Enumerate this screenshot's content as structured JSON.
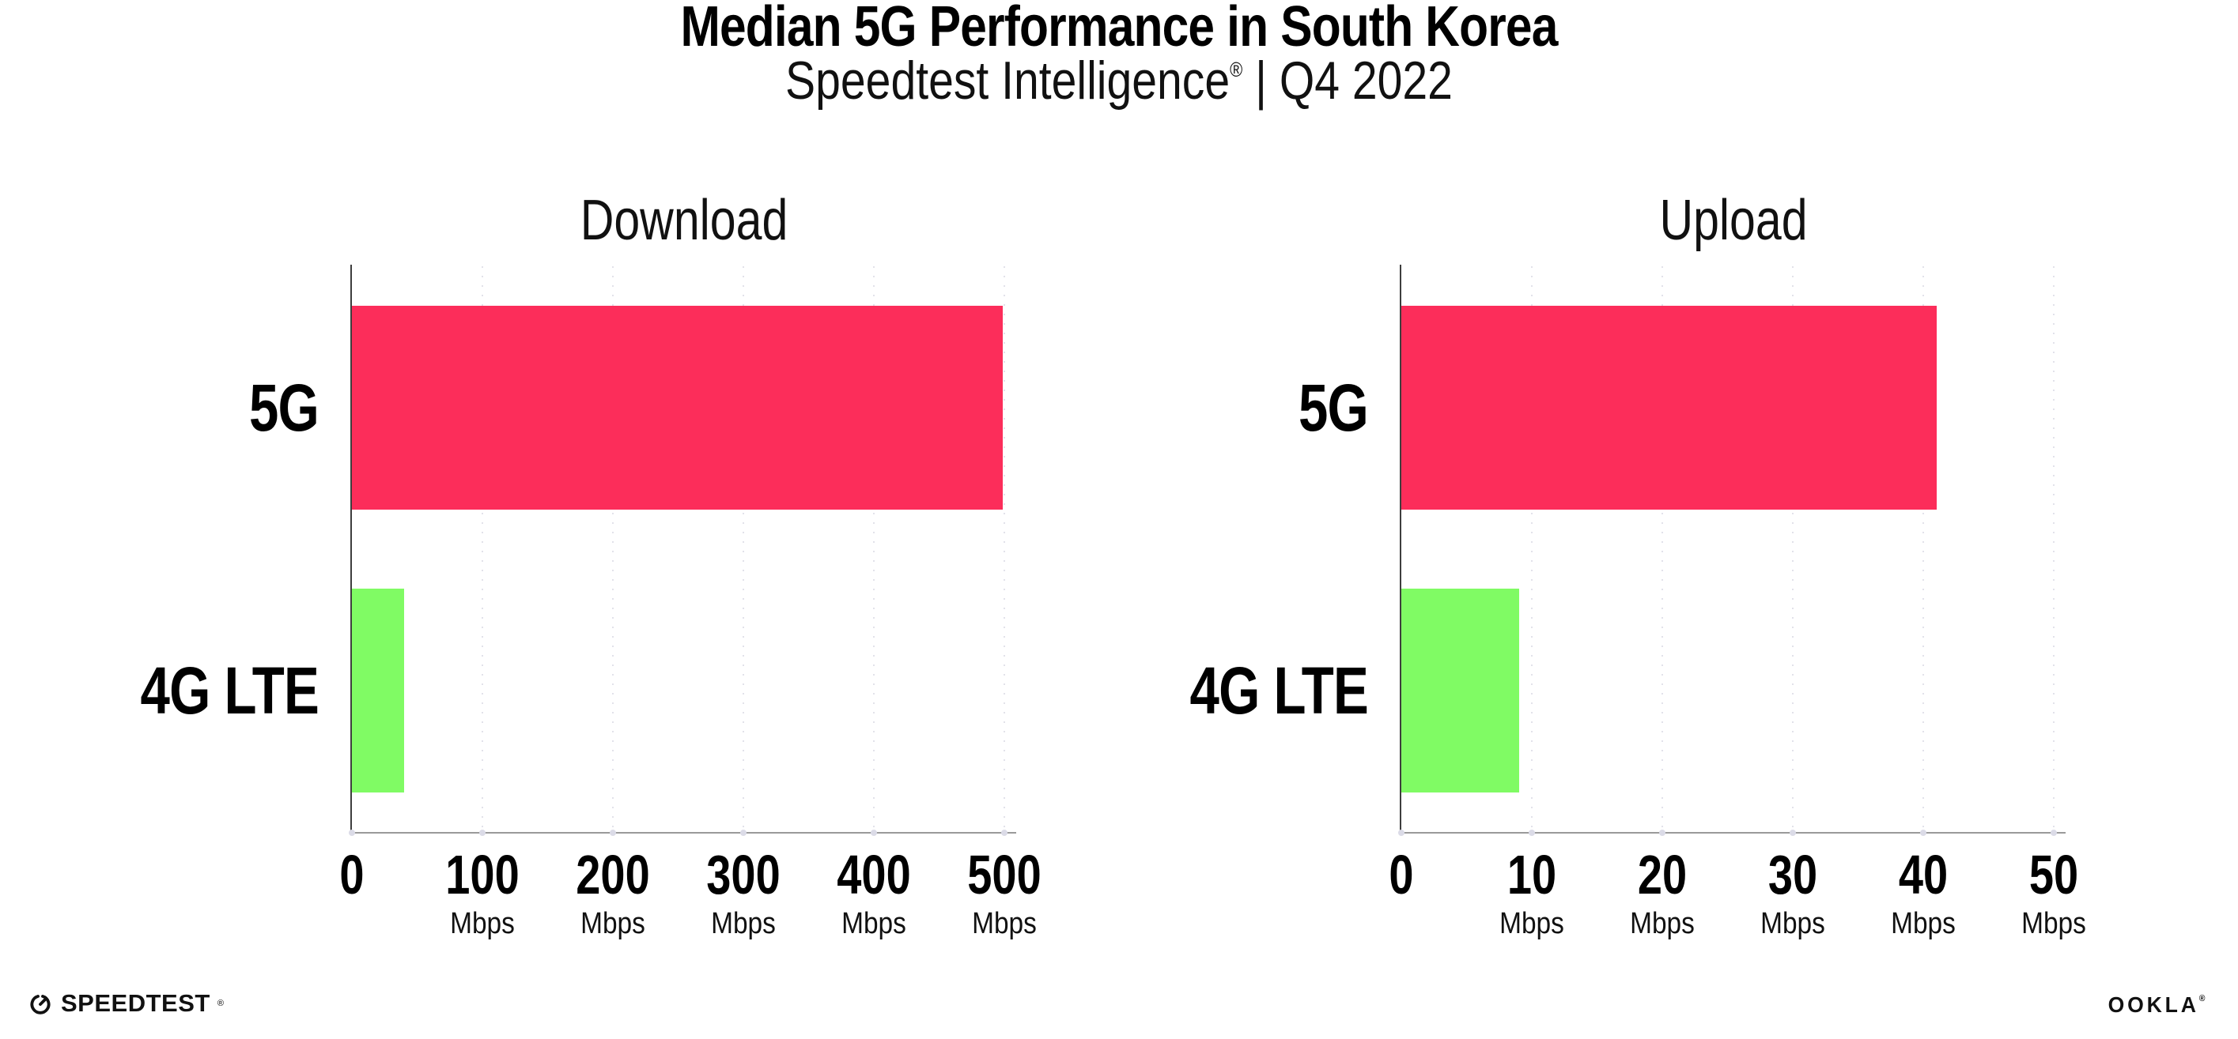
{
  "header": {
    "title": "Median 5G Performance in South Korea",
    "subtitle_prefix": "Speedtest Intelligence",
    "registered_mark": "®",
    "subtitle_suffix": " | Q4 2022"
  },
  "chart_data": [
    {
      "type": "bar",
      "orientation": "horizontal",
      "title": "Download",
      "categories": [
        "5G",
        "4G LTE"
      ],
      "values": [
        499,
        40
      ],
      "unit": "Mbps",
      "xlim": [
        0,
        500
      ],
      "xticks": [
        0,
        100,
        200,
        300,
        400,
        500
      ],
      "tick_unit_label": "Mbps",
      "bar_colors": [
        "#fc2d5a",
        "#80fb64"
      ],
      "grid": true,
      "legend": "none"
    },
    {
      "type": "bar",
      "orientation": "horizontal",
      "title": "Upload",
      "categories": [
        "5G",
        "4G LTE"
      ],
      "values": [
        41,
        9
      ],
      "unit": "Mbps",
      "xlim": [
        0,
        50
      ],
      "xticks": [
        0,
        10,
        20,
        30,
        40,
        50
      ],
      "tick_unit_label": "Mbps",
      "bar_colors": [
        "#fc2d5a",
        "#80fb64"
      ],
      "grid": true,
      "legend": "none"
    }
  ],
  "colors": {
    "bar_5g": "#fc2d5a",
    "bar_4g_lte": "#80fb64",
    "gridline": "#e2e2ea",
    "y_axis": "#3e3e3e",
    "x_axis": "#9a9a9a",
    "text": "#000000"
  },
  "footer": {
    "speedtest_label": "SPEEDTEST",
    "speedtest_mark": "®",
    "ookla_label": "OOKLA",
    "ookla_mark": "®"
  }
}
